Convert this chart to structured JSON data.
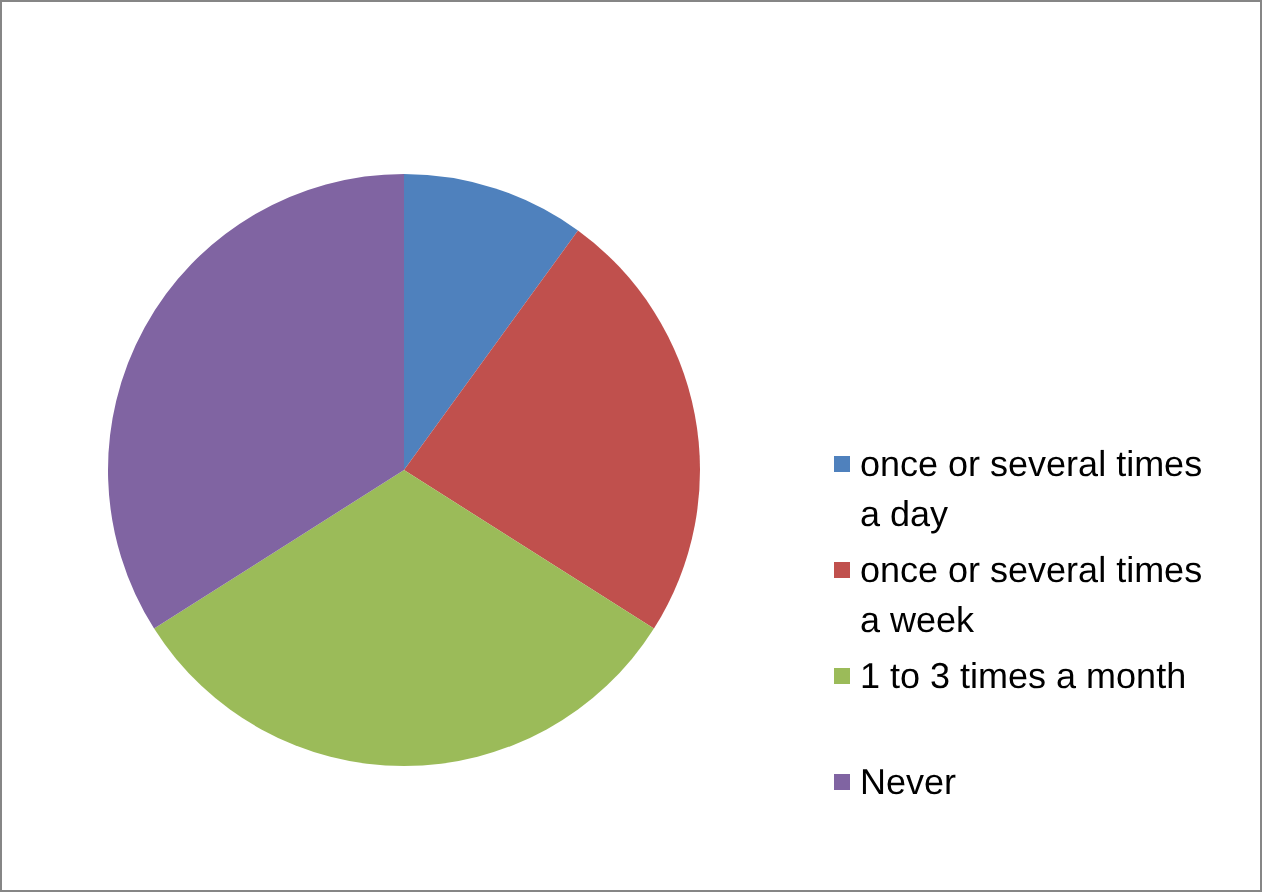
{
  "chart_data": {
    "type": "pie",
    "categories": [
      "once or several times a day",
      "once or several times a week",
      "1 to 3 times a month",
      "Never"
    ],
    "values": [
      10,
      24,
      32,
      34
    ],
    "colors": [
      "#4f81bd",
      "#c0504d",
      "#9bbb59",
      "#8064a2"
    ],
    "legend": "right"
  }
}
